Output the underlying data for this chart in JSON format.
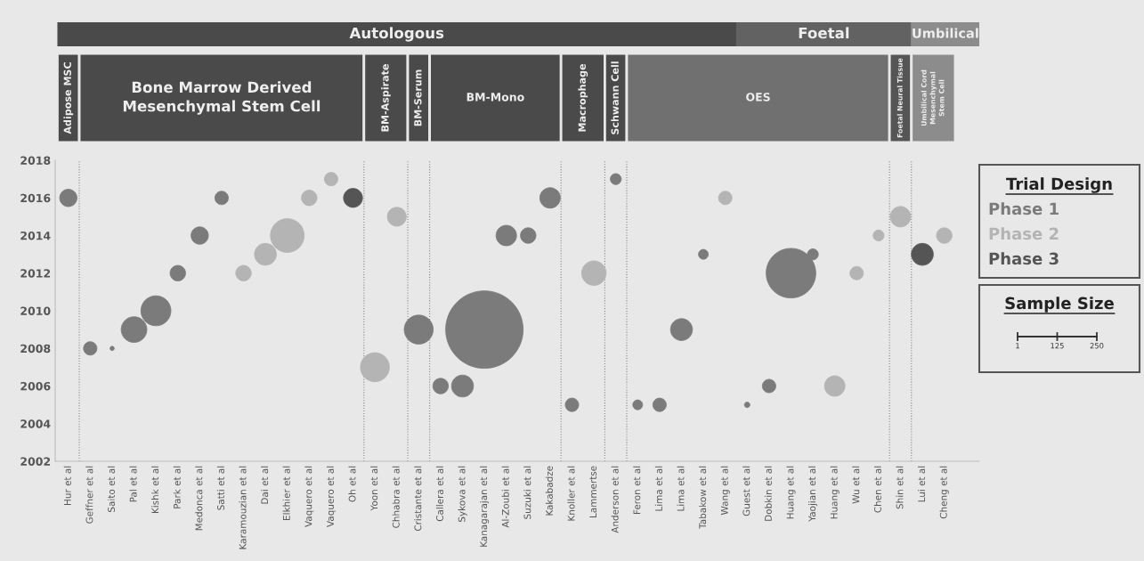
{
  "chart_data": {
    "type": "bubble",
    "categories": [
      "Hur et al",
      "Geffner et al",
      "Saito et al",
      "Pal et al",
      "Kishk et al",
      "Park et al",
      "Medonca et al",
      "Satti et al",
      "Karamouzian et al",
      "Dai et al",
      "Elkhier et al",
      "Vaquero et al",
      "Vaquero et al",
      "Oh et al",
      "Yoon et al",
      "Chhabra et al",
      "Cristante et al",
      "Callera et al",
      "Sykova et al",
      "Kanagarajan et al",
      "Al-Zoubi et al",
      "Suzuki et al",
      "Kakabadze",
      "Knoller et al",
      "Lammertse",
      "Anderson et al",
      "Feron et al",
      "Lima et al",
      "Lima et al",
      "Tabakow et al",
      "Wang et al",
      "Guest et al",
      "Dobkin et al",
      "Huang et al",
      "Yaojian et al",
      "Huang et al",
      "Wu et al",
      "Chen et al",
      "Shin et al",
      "Lui et al",
      "Cheng et al"
    ],
    "series": [
      {
        "name": "Phase 1",
        "color": "#7b7b7b",
        "values": [
          2016,
          2008,
          2008,
          2009,
          2010,
          2012,
          2014,
          2016,
          null,
          null,
          null,
          null,
          null,
          null,
          null,
          null,
          2009,
          2006,
          2006,
          2009,
          2014,
          2014,
          2016,
          2005,
          null,
          2017,
          2005,
          2005,
          2009,
          2013,
          null,
          2005,
          2006,
          2012,
          2013,
          null,
          null,
          null,
          null,
          null,
          null
        ],
        "sizes": [
          0.05,
          0.03,
          0.003,
          0.11,
          0.15,
          0.04,
          0.05,
          0.03,
          null,
          null,
          null,
          null,
          null,
          null,
          null,
          null,
          0.14,
          0.04,
          0.08,
          1,
          0.07,
          0.04,
          0.07,
          0.03,
          null,
          0.02,
          0.016,
          0.03,
          0.08,
          0.016,
          null,
          0.005,
          0.03,
          0.41,
          0.02,
          null,
          null,
          null,
          null,
          null,
          null
        ]
      },
      {
        "name": "Phase 2",
        "color": "#b4b4b4",
        "values": [
          null,
          null,
          null,
          null,
          null,
          null,
          null,
          null,
          2012,
          2013,
          2014,
          2016,
          2017,
          null,
          2007,
          2015,
          null,
          null,
          null,
          null,
          null,
          null,
          null,
          null,
          2012,
          null,
          null,
          null,
          null,
          null,
          2016,
          null,
          null,
          null,
          null,
          2006,
          2012,
          2014,
          2015,
          null,
          2014
        ],
        "sizes": [
          null,
          null,
          null,
          null,
          null,
          null,
          null,
          null,
          0.04,
          0.08,
          0.19,
          0.04,
          0.03,
          null,
          0.14,
          0.06,
          null,
          null,
          null,
          null,
          null,
          null,
          null,
          null,
          0.1,
          null,
          null,
          null,
          null,
          null,
          0.03,
          null,
          null,
          null,
          null,
          0.07,
          0.03,
          0.02,
          0.07,
          null,
          0.04
        ]
      },
      {
        "name": "Phase 3",
        "color": "#555555",
        "values": [
          null,
          null,
          null,
          null,
          null,
          null,
          null,
          null,
          null,
          null,
          null,
          null,
          null,
          2016,
          null,
          null,
          null,
          null,
          null,
          null,
          null,
          null,
          null,
          null,
          null,
          null,
          null,
          null,
          null,
          null,
          null,
          null,
          null,
          null,
          null,
          null,
          null,
          null,
          null,
          2013,
          null
        ],
        "sizes": [
          null,
          null,
          null,
          null,
          null,
          null,
          null,
          null,
          null,
          null,
          null,
          null,
          null,
          0.06,
          null,
          null,
          null,
          null,
          null,
          null,
          null,
          null,
          null,
          null,
          null,
          null,
          null,
          null,
          null,
          null,
          null,
          null,
          null,
          null,
          null,
          null,
          null,
          null,
          null,
          0.08,
          null
        ]
      }
    ],
    "ylim": [
      2002,
      2018
    ],
    "yticks": [
      2002,
      2004,
      2006,
      2008,
      2010,
      2012,
      2014,
      2016,
      2018
    ],
    "legend_title": "Trial Design",
    "legend": "right",
    "annotations": [
      "Autologous",
      "Foetal",
      "Umbilical",
      "Adipose MSC",
      "Bone Marrow Derived\nMesenchymal Stem Cell",
      "BM-Aspirate",
      "BM-Serum",
      "BM-Mono",
      "Macrophage",
      "Schwann Cell",
      "OES",
      "Foetal Neural Tissue",
      "Umbilical Cord\nMesenchymal\nStem Cell",
      "Sample Size",
      "1",
      "125",
      "250"
    ],
    "grid": false
  }
}
